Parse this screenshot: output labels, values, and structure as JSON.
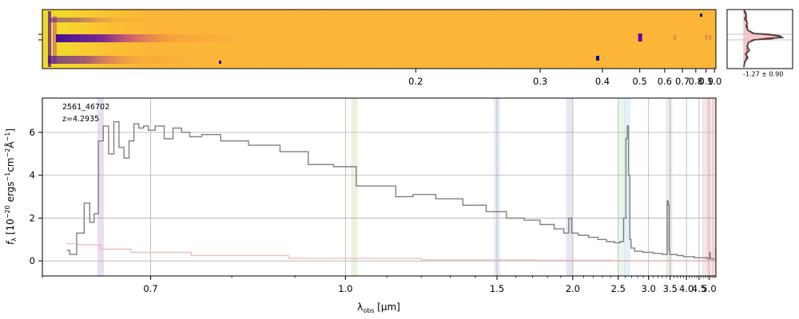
{
  "colors": {
    "spectrum": "#808080",
    "error": "#f4b4b8",
    "grid": "#b0b0b0",
    "image_bg": "#fcb431",
    "image_trace": "#3d049b",
    "profile_line": "#444444",
    "profile_fit": "#c81e1e",
    "profile_fill": "#f4b4b8"
  },
  "chart_data": [
    {
      "type": "heatmap",
      "name": "2d-spectrum",
      "colormap": "plasma",
      "xaxis_type": "reciprocal",
      "xticks": [
        "0.2",
        "0.3",
        "0.4",
        "0.5",
        "0.6",
        "0.7",
        "0.8",
        "0.9",
        "1.0"
      ],
      "features_at_um": [
        0.5,
        0.655,
        0.905,
        0.95
      ],
      "grid": false
    },
    {
      "type": "line",
      "name": "spatial-profile",
      "annotation": "-1.27 ± 0.90",
      "grid": true
    },
    {
      "type": "line",
      "name": "1d-spectrum",
      "object_id": "2561_46702",
      "redshift_label": "z=4.2935",
      "xlabel": "λobs [μm]",
      "ylabel": "fλ [10⁻²⁰ ergs⁻¹cm⁻²Å⁻¹]",
      "xaxis_type": "reciprocal",
      "xticks": [
        "0.7",
        "1.0",
        "1.5",
        "2.0",
        "2.5",
        "3.0",
        "3.5",
        "4.0",
        "4.5",
        "5.0"
      ],
      "yticks": [
        "0",
        "2",
        "4",
        "6"
      ],
      "xlim": [
        0.6,
        5.4
      ],
      "ylim": [
        -0.7,
        7.6
      ],
      "grid": true,
      "line_bands": [
        {
          "x": 0.65,
          "color": "#b68fd8"
        },
        {
          "x": 1.02,
          "color": "#b5d88f"
        },
        {
          "x": 1.5,
          "color": "#a9c6e8"
        },
        {
          "x": 1.97,
          "color": "#b9a9d8"
        },
        {
          "x": 2.55,
          "color": "#b5e0b5"
        },
        {
          "x": 2.63,
          "color": "#a9d0e8"
        },
        {
          "x": 3.47,
          "color": "#b5c8a9"
        },
        {
          "x": 4.8,
          "color": "#e0a9a9"
        },
        {
          "x": 5.06,
          "color": "#e0a9a9"
        },
        {
          "x": 5.38,
          "color": "#f08090"
        }
      ],
      "series": [
        {
          "role": "flux",
          "x": [
            0.62,
            0.625,
            0.632,
            0.638,
            0.642,
            0.646,
            0.65,
            0.655,
            0.66,
            0.665,
            0.67,
            0.675,
            0.68,
            0.685,
            0.69,
            0.695,
            0.7,
            0.71,
            0.72,
            0.73,
            0.74,
            0.75,
            0.77,
            0.8,
            0.85,
            0.9,
            0.95,
            1.0,
            1.05,
            1.1,
            1.15,
            1.2,
            1.3,
            1.4,
            1.5,
            1.6,
            1.7,
            1.8,
            1.9,
            1.95,
            1.98,
            2.0,
            2.1,
            2.2,
            2.3,
            2.4,
            2.5,
            2.55,
            2.6,
            2.62,
            2.64,
            2.66,
            2.68,
            2.7,
            2.8,
            3.0,
            3.2,
            3.4,
            3.44,
            3.46,
            3.48,
            3.5,
            3.6,
            3.8,
            4.0,
            4.2,
            4.4,
            4.6,
            4.8,
            5.0,
            5.05,
            5.07,
            5.1,
            5.2,
            5.3,
            5.4
          ],
          "y": [
            0.5,
            0.3,
            1.3,
            2.7,
            1.8,
            2.2,
            5.6,
            6.3,
            5.0,
            6.5,
            5.3,
            4.8,
            5.6,
            6.4,
            6.2,
            6.3,
            6.1,
            6.3,
            5.7,
            6.2,
            6.0,
            5.8,
            5.9,
            5.6,
            5.4,
            5.1,
            4.5,
            4.4,
            3.5,
            3.5,
            3.0,
            3.1,
            2.9,
            2.6,
            2.3,
            2.0,
            1.9,
            1.7,
            1.5,
            1.3,
            2.0,
            1.3,
            1.2,
            1.1,
            1.0,
            0.9,
            0.85,
            0.9,
            2.0,
            5.7,
            6.3,
            4.0,
            1.0,
            0.6,
            0.45,
            0.4,
            0.35,
            0.3,
            2.8,
            2.6,
            0.5,
            0.3,
            0.3,
            0.25,
            0.2,
            0.2,
            0.15,
            0.15,
            0.15,
            0.1,
            0.4,
            0.15,
            0.1,
            0.1,
            0.05,
            0.05
          ]
        },
        {
          "role": "error",
          "x": [
            0.62,
            0.64,
            0.66,
            0.7,
            0.8,
            1.0,
            1.5,
            2.0,
            3.0,
            4.0,
            5.0,
            5.3,
            5.4
          ],
          "y": [
            0.8,
            0.75,
            0.55,
            0.4,
            0.25,
            0.12,
            0.05,
            0.03,
            0.02,
            0.02,
            0.02,
            0.02,
            0.6
          ]
        }
      ]
    }
  ]
}
